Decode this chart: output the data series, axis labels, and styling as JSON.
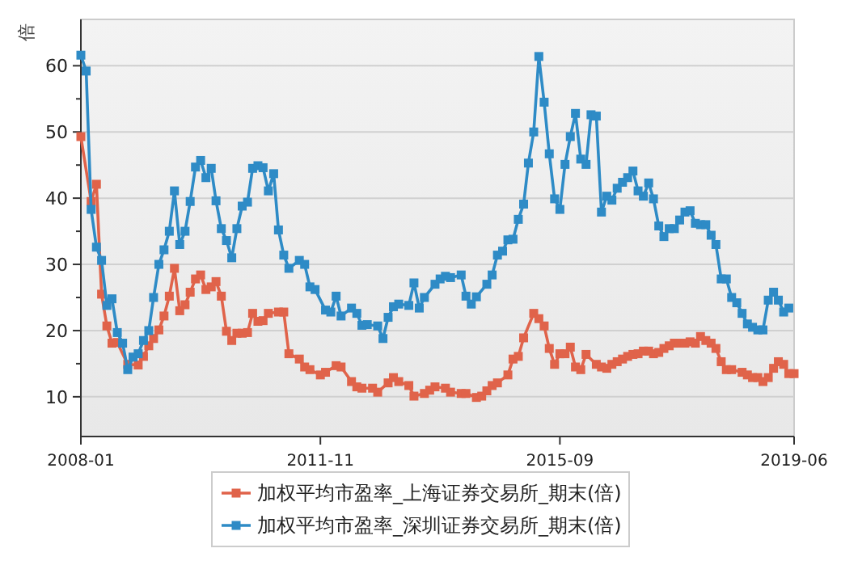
{
  "chart_data": {
    "type": "line",
    "ylabel": "倍",
    "xlim": [
      "2008-01",
      "2019-06"
    ],
    "xticks": [
      "2008-01",
      "2011-11",
      "2015-09",
      "2019-06"
    ],
    "ylim": [
      4,
      67
    ],
    "yticks": [
      10,
      20,
      30,
      40,
      50,
      60
    ],
    "grid": "y",
    "legend": "bottom",
    "marker": "square",
    "line_style": "solid",
    "series": [
      {
        "name": "加权平均市盈率_上海证券交易所_期末(倍)",
        "color": "#e0634a",
        "x": [
          "2008-01",
          "2008-03",
          "2008-04",
          "2008-05",
          "2008-06",
          "2008-07",
          "2008-08",
          "2008-10",
          "2008-12",
          "2009-01",
          "2009-02",
          "2009-03",
          "2009-04",
          "2009-05",
          "2009-06",
          "2009-07",
          "2009-08",
          "2009-09",
          "2009-10",
          "2009-11",
          "2009-12",
          "2010-01",
          "2010-02",
          "2010-03",
          "2010-04",
          "2010-05",
          "2010-06",
          "2010-07",
          "2010-08",
          "2010-09",
          "2010-10",
          "2010-11",
          "2010-12",
          "2011-01",
          "2011-03",
          "2011-04",
          "2011-05",
          "2011-07",
          "2011-08",
          "2011-09",
          "2011-11",
          "2011-12",
          "2012-02",
          "2012-03",
          "2012-05",
          "2012-06",
          "2012-07",
          "2012-09",
          "2012-10",
          "2012-12",
          "2013-01",
          "2013-02",
          "2013-04",
          "2013-05",
          "2013-07",
          "2013-08",
          "2013-09",
          "2013-11",
          "2013-12",
          "2014-02",
          "2014-03",
          "2014-05",
          "2014-06",
          "2014-07",
          "2014-08",
          "2014-09",
          "2014-11",
          "2014-12",
          "2015-01",
          "2015-02",
          "2015-04",
          "2015-05",
          "2015-06",
          "2015-07",
          "2015-08",
          "2015-09",
          "2015-10",
          "2015-11",
          "2015-12",
          "2016-01",
          "2016-02",
          "2016-04",
          "2016-05",
          "2016-06",
          "2016-07",
          "2016-08",
          "2016-09",
          "2016-10",
          "2016-11",
          "2016-12",
          "2017-01",
          "2017-02",
          "2017-03",
          "2017-04",
          "2017-05",
          "2017-06",
          "2017-07",
          "2017-08",
          "2017-09",
          "2017-10",
          "2017-11",
          "2017-12",
          "2018-01",
          "2018-02",
          "2018-03",
          "2018-04",
          "2018-05",
          "2018-06",
          "2018-08",
          "2018-09",
          "2018-10",
          "2018-11",
          "2018-12",
          "2019-01",
          "2019-02",
          "2019-03",
          "2019-04",
          "2019-05",
          "2019-06"
        ],
        "values": [
          49.3,
          39.5,
          42.1,
          25.5,
          20.7,
          18.1,
          18.2,
          14.9,
          14.8,
          16.1,
          17.7,
          18.8,
          20.1,
          22.2,
          25.2,
          29.4,
          23,
          23.9,
          25.8,
          27.8,
          28.4,
          26.2,
          26.6,
          27.4,
          25.2,
          19.9,
          18.5,
          19.6,
          19.6,
          19.7,
          22.6,
          21.4,
          21.5,
          22.6,
          22.8,
          22.8,
          16.5,
          15.7,
          14.5,
          14.1,
          13.3,
          13.7,
          14.7,
          14.5,
          12.3,
          11.5,
          11.3,
          11.3,
          10.7,
          12.1,
          12.9,
          12.3,
          11.7,
          10.1,
          10.5,
          11,
          11.5,
          11.3,
          10.7,
          10.5,
          10.5,
          9.9,
          10.1,
          10.9,
          11.7,
          12.1,
          13.3,
          15.7,
          16.1,
          18.9,
          22.6,
          21.8,
          20.7,
          17.3,
          14.9,
          16.5,
          16.5,
          17.5,
          14.5,
          14.1,
          16.4,
          14.9,
          14.5,
          14.3,
          14.9,
          15.3,
          15.7,
          16.1,
          16.4,
          16.5,
          16.9,
          16.9,
          16.5,
          16.7,
          17.3,
          17.7,
          18.1,
          18.1,
          18.1,
          18.3,
          18.1,
          19.1,
          18.5,
          18.1,
          17.3,
          15.3,
          14.1,
          14.1,
          13.7,
          13.3,
          12.9,
          12.9,
          12.3,
          12.9,
          14.3,
          15.3,
          14.9,
          13.5,
          13.5
        ]
      },
      {
        "name": "加权平均市盈率_深圳证券交易所_期末(倍)",
        "color": "#2e8bc6",
        "x": [
          "2008-01",
          "2008-02",
          "2008-03",
          "2008-04",
          "2008-05",
          "2008-06",
          "2008-07",
          "2008-08",
          "2008-09",
          "2008-10",
          "2008-11",
          "2008-12",
          "2009-01",
          "2009-02",
          "2009-03",
          "2009-04",
          "2009-05",
          "2009-06",
          "2009-07",
          "2009-08",
          "2009-09",
          "2009-10",
          "2009-11",
          "2009-12",
          "2010-01",
          "2010-02",
          "2010-03",
          "2010-04",
          "2010-05",
          "2010-06",
          "2010-07",
          "2010-08",
          "2010-09",
          "2010-10",
          "2010-11",
          "2010-12",
          "2011-01",
          "2011-02",
          "2011-03",
          "2011-04",
          "2011-05",
          "2011-07",
          "2011-08",
          "2011-09",
          "2011-10",
          "2011-12",
          "2012-01",
          "2012-02",
          "2012-03",
          "2012-05",
          "2012-06",
          "2012-07",
          "2012-08",
          "2012-10",
          "2012-11",
          "2012-12",
          "2013-01",
          "2013-02",
          "2013-04",
          "2013-05",
          "2013-06",
          "2013-07",
          "2013-09",
          "2013-10",
          "2013-11",
          "2013-12",
          "2014-02",
          "2014-03",
          "2014-04",
          "2014-05",
          "2014-07",
          "2014-08",
          "2014-09",
          "2014-10",
          "2014-11",
          "2014-12",
          "2015-01",
          "2015-02",
          "2015-03",
          "2015-04",
          "2015-05",
          "2015-06",
          "2015-07",
          "2015-08",
          "2015-09",
          "2015-10",
          "2015-11",
          "2015-12",
          "2016-01",
          "2016-02",
          "2016-03",
          "2016-04",
          "2016-05",
          "2016-06",
          "2016-07",
          "2016-08",
          "2016-09",
          "2016-10",
          "2016-11",
          "2016-12",
          "2017-01",
          "2017-02",
          "2017-03",
          "2017-04",
          "2017-05",
          "2017-06",
          "2017-07",
          "2017-08",
          "2017-09",
          "2017-10",
          "2017-11",
          "2017-12",
          "2018-01",
          "2018-02",
          "2018-03",
          "2018-04",
          "2018-05",
          "2018-06",
          "2018-07",
          "2018-08",
          "2018-09",
          "2018-10",
          "2018-11",
          "2018-12",
          "2019-01",
          "2019-02",
          "2019-03",
          "2019-04",
          "2019-05"
        ],
        "values": [
          61.6,
          59.2,
          38.3,
          32.6,
          30.6,
          23.8,
          24.8,
          19.7,
          18.1,
          14.1,
          16,
          16.5,
          18.5,
          20,
          25,
          30,
          32.2,
          35,
          41.1,
          33,
          35,
          39.5,
          44.7,
          45.7,
          43.1,
          44.5,
          39.6,
          35.4,
          33.6,
          31,
          35.4,
          38.8,
          39.4,
          44.5,
          44.9,
          44.6,
          41.1,
          43.7,
          35.2,
          31.4,
          29.4,
          30.6,
          30,
          26.6,
          26.2,
          23.1,
          22.8,
          25.2,
          22.2,
          23.4,
          22.6,
          20.8,
          20.9,
          20.7,
          18.8,
          22,
          23.6,
          24,
          23.8,
          27.2,
          23.4,
          25,
          27,
          27.8,
          28.2,
          28,
          28.4,
          25.2,
          24,
          25.1,
          27,
          28.4,
          31.4,
          32,
          33.7,
          33.8,
          36.8,
          39.1,
          45.3,
          50,
          61.4,
          54.5,
          46.7,
          39.9,
          38.3,
          45.1,
          49.3,
          52.8,
          45.9,
          45.1,
          52.6,
          52.4,
          37.9,
          40.3,
          39.7,
          41.5,
          42.4,
          43.1,
          44.1,
          41.1,
          40.3,
          42.3,
          39.9,
          35.8,
          34.2,
          35.4,
          35.4,
          36.7,
          37.9,
          38.1,
          36.2,
          36,
          36,
          34.4,
          33,
          27.8,
          27.8,
          25,
          24.2,
          22.6,
          21,
          20.5,
          20.1,
          20.1,
          24.6,
          25.8,
          24.6,
          22.8,
          23.4
        ]
      }
    ]
  }
}
